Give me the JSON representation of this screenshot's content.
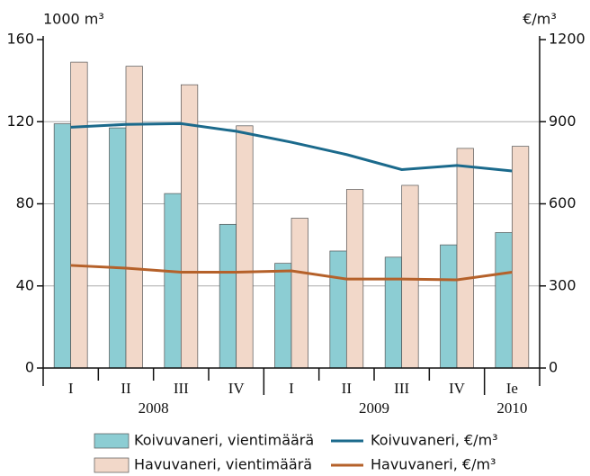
{
  "chart_data": {
    "type": "bar_line",
    "y_label": "1000 m³",
    "y2_label": "€/m³",
    "category_groups": [
      {
        "name": "2008",
        "categories": [
          "I",
          "II",
          "III",
          "IV"
        ]
      },
      {
        "name": "2009",
        "categories": [
          "I",
          "II",
          "III",
          "IV"
        ]
      },
      {
        "name": "2010",
        "categories": [
          "Ie"
        ]
      }
    ],
    "series": [
      {
        "name": "Koivuvaneri, vientimäärä",
        "type": "bar",
        "color": "#8ccdd3",
        "values": [
          119,
          117,
          85,
          70,
          51,
          57,
          54,
          60,
          66
        ]
      },
      {
        "name": "Havuvaneri, vientimäärä",
        "type": "bar",
        "color": "#f2d8c9",
        "values": [
          149,
          147,
          138,
          118,
          73,
          87,
          89,
          107,
          108
        ]
      },
      {
        "name": "Koivuvaneri, €/m³",
        "type": "line",
        "axis": "y2",
        "color": "#1b6a8c",
        "values": [
          880,
          890,
          893,
          865,
          825,
          780,
          725,
          740,
          720
        ]
      },
      {
        "name": "Havuvaneri, €/m³",
        "type": "line",
        "axis": "y2",
        "color": "#b5612a",
        "values": [
          375,
          365,
          350,
          350,
          355,
          325,
          325,
          322,
          350
        ]
      }
    ],
    "ylim": [
      0,
      160
    ],
    "yticks": [
      0,
      40,
      80,
      120,
      160
    ],
    "y2lim": [
      0,
      1200
    ],
    "y2ticks": [
      0,
      300,
      600,
      900,
      1200
    ],
    "grid": true
  }
}
